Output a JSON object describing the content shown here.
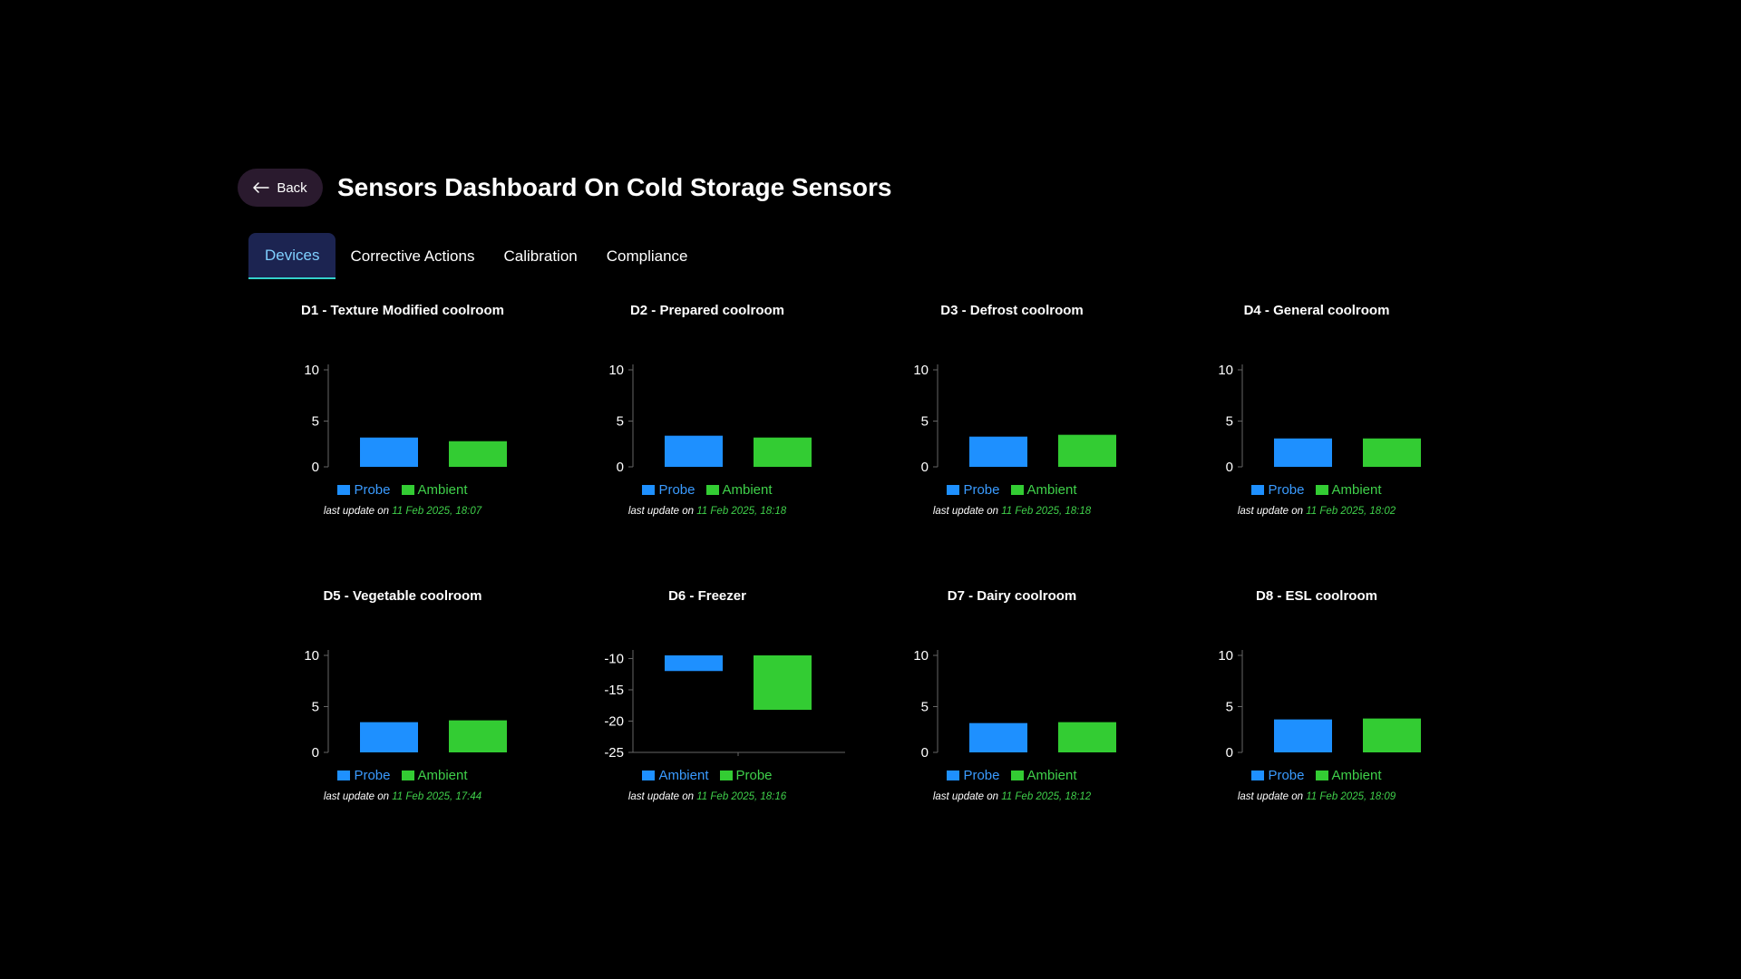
{
  "header": {
    "back_label": "Back",
    "title": "Sensors Dashboard On Cold Storage Sensors"
  },
  "tabs": [
    {
      "label": "Devices",
      "active": true
    },
    {
      "label": "Corrective Actions",
      "active": false
    },
    {
      "label": "Calibration",
      "active": false
    },
    {
      "label": "Compliance",
      "active": false
    }
  ],
  "colors": {
    "blue": "#1e90ff",
    "green": "#33cc33"
  },
  "update_prefix": "last update on",
  "chart_data": [
    {
      "type": "bar",
      "title": "D1 - Texture Modified coolroom",
      "ylim": [
        0,
        10
      ],
      "yticks": [
        "10",
        "5",
        "0"
      ],
      "series": [
        {
          "name": "Probe",
          "color": "blue",
          "value": 3.2
        },
        {
          "name": "Ambient",
          "color": "green",
          "value": 2.8
        }
      ],
      "last_update": "11 Feb 2025, 18:07"
    },
    {
      "type": "bar",
      "title": "D2 - Prepared coolroom",
      "ylim": [
        0,
        10
      ],
      "yticks": [
        "10",
        "5",
        "0"
      ],
      "series": [
        {
          "name": "Probe",
          "color": "blue",
          "value": 3.4
        },
        {
          "name": "Ambient",
          "color": "green",
          "value": 3.2
        }
      ],
      "last_update": "11 Feb 2025, 18:18"
    },
    {
      "type": "bar",
      "title": "D3 - Defrost coolroom",
      "ylim": [
        0,
        10
      ],
      "yticks": [
        "10",
        "5",
        "0"
      ],
      "series": [
        {
          "name": "Probe",
          "color": "blue",
          "value": 3.3
        },
        {
          "name": "Ambient",
          "color": "green",
          "value": 3.5
        }
      ],
      "last_update": "11 Feb 2025, 18:18"
    },
    {
      "type": "bar",
      "title": "D4 - General coolroom",
      "ylim": [
        0,
        10
      ],
      "yticks": [
        "10",
        "5",
        "0"
      ],
      "series": [
        {
          "name": "Probe",
          "color": "blue",
          "value": 3.1
        },
        {
          "name": "Ambient",
          "color": "green",
          "value": 3.1
        }
      ],
      "last_update": "11 Feb 2025, 18:02"
    },
    {
      "type": "bar",
      "title": "D5 - Vegetable coolroom",
      "ylim": [
        0,
        10
      ],
      "yticks": [
        "10",
        "5",
        "0"
      ],
      "series": [
        {
          "name": "Probe",
          "color": "blue",
          "value": 3.3
        },
        {
          "name": "Ambient",
          "color": "green",
          "value": 3.5
        }
      ],
      "last_update": "11 Feb 2025, 17:44"
    },
    {
      "type": "bar",
      "title": "D6 - Freezer",
      "ylim": [
        -25,
        -9.5
      ],
      "inverted": true,
      "yticks": [
        "-10",
        "-15",
        "-20",
        "-25"
      ],
      "series": [
        {
          "name": "Ambient",
          "color": "blue",
          "value": -12.0
        },
        {
          "name": "Probe",
          "color": "green",
          "value": -18.2
        }
      ],
      "last_update": "11 Feb 2025, 18:16"
    },
    {
      "type": "bar",
      "title": "D7 - Dairy coolroom",
      "ylim": [
        0,
        10
      ],
      "yticks": [
        "10",
        "5",
        "0"
      ],
      "series": [
        {
          "name": "Probe",
          "color": "blue",
          "value": 3.2
        },
        {
          "name": "Ambient",
          "color": "green",
          "value": 3.3
        }
      ],
      "last_update": "11 Feb 2025, 18:12"
    },
    {
      "type": "bar",
      "title": "D8 - ESL coolroom",
      "ylim": [
        0,
        10
      ],
      "yticks": [
        "10",
        "5",
        "0"
      ],
      "series": [
        {
          "name": "Probe",
          "color": "blue",
          "value": 3.6
        },
        {
          "name": "Ambient",
          "color": "green",
          "value": 3.7
        }
      ],
      "last_update": "11 Feb 2025, 18:09"
    }
  ]
}
